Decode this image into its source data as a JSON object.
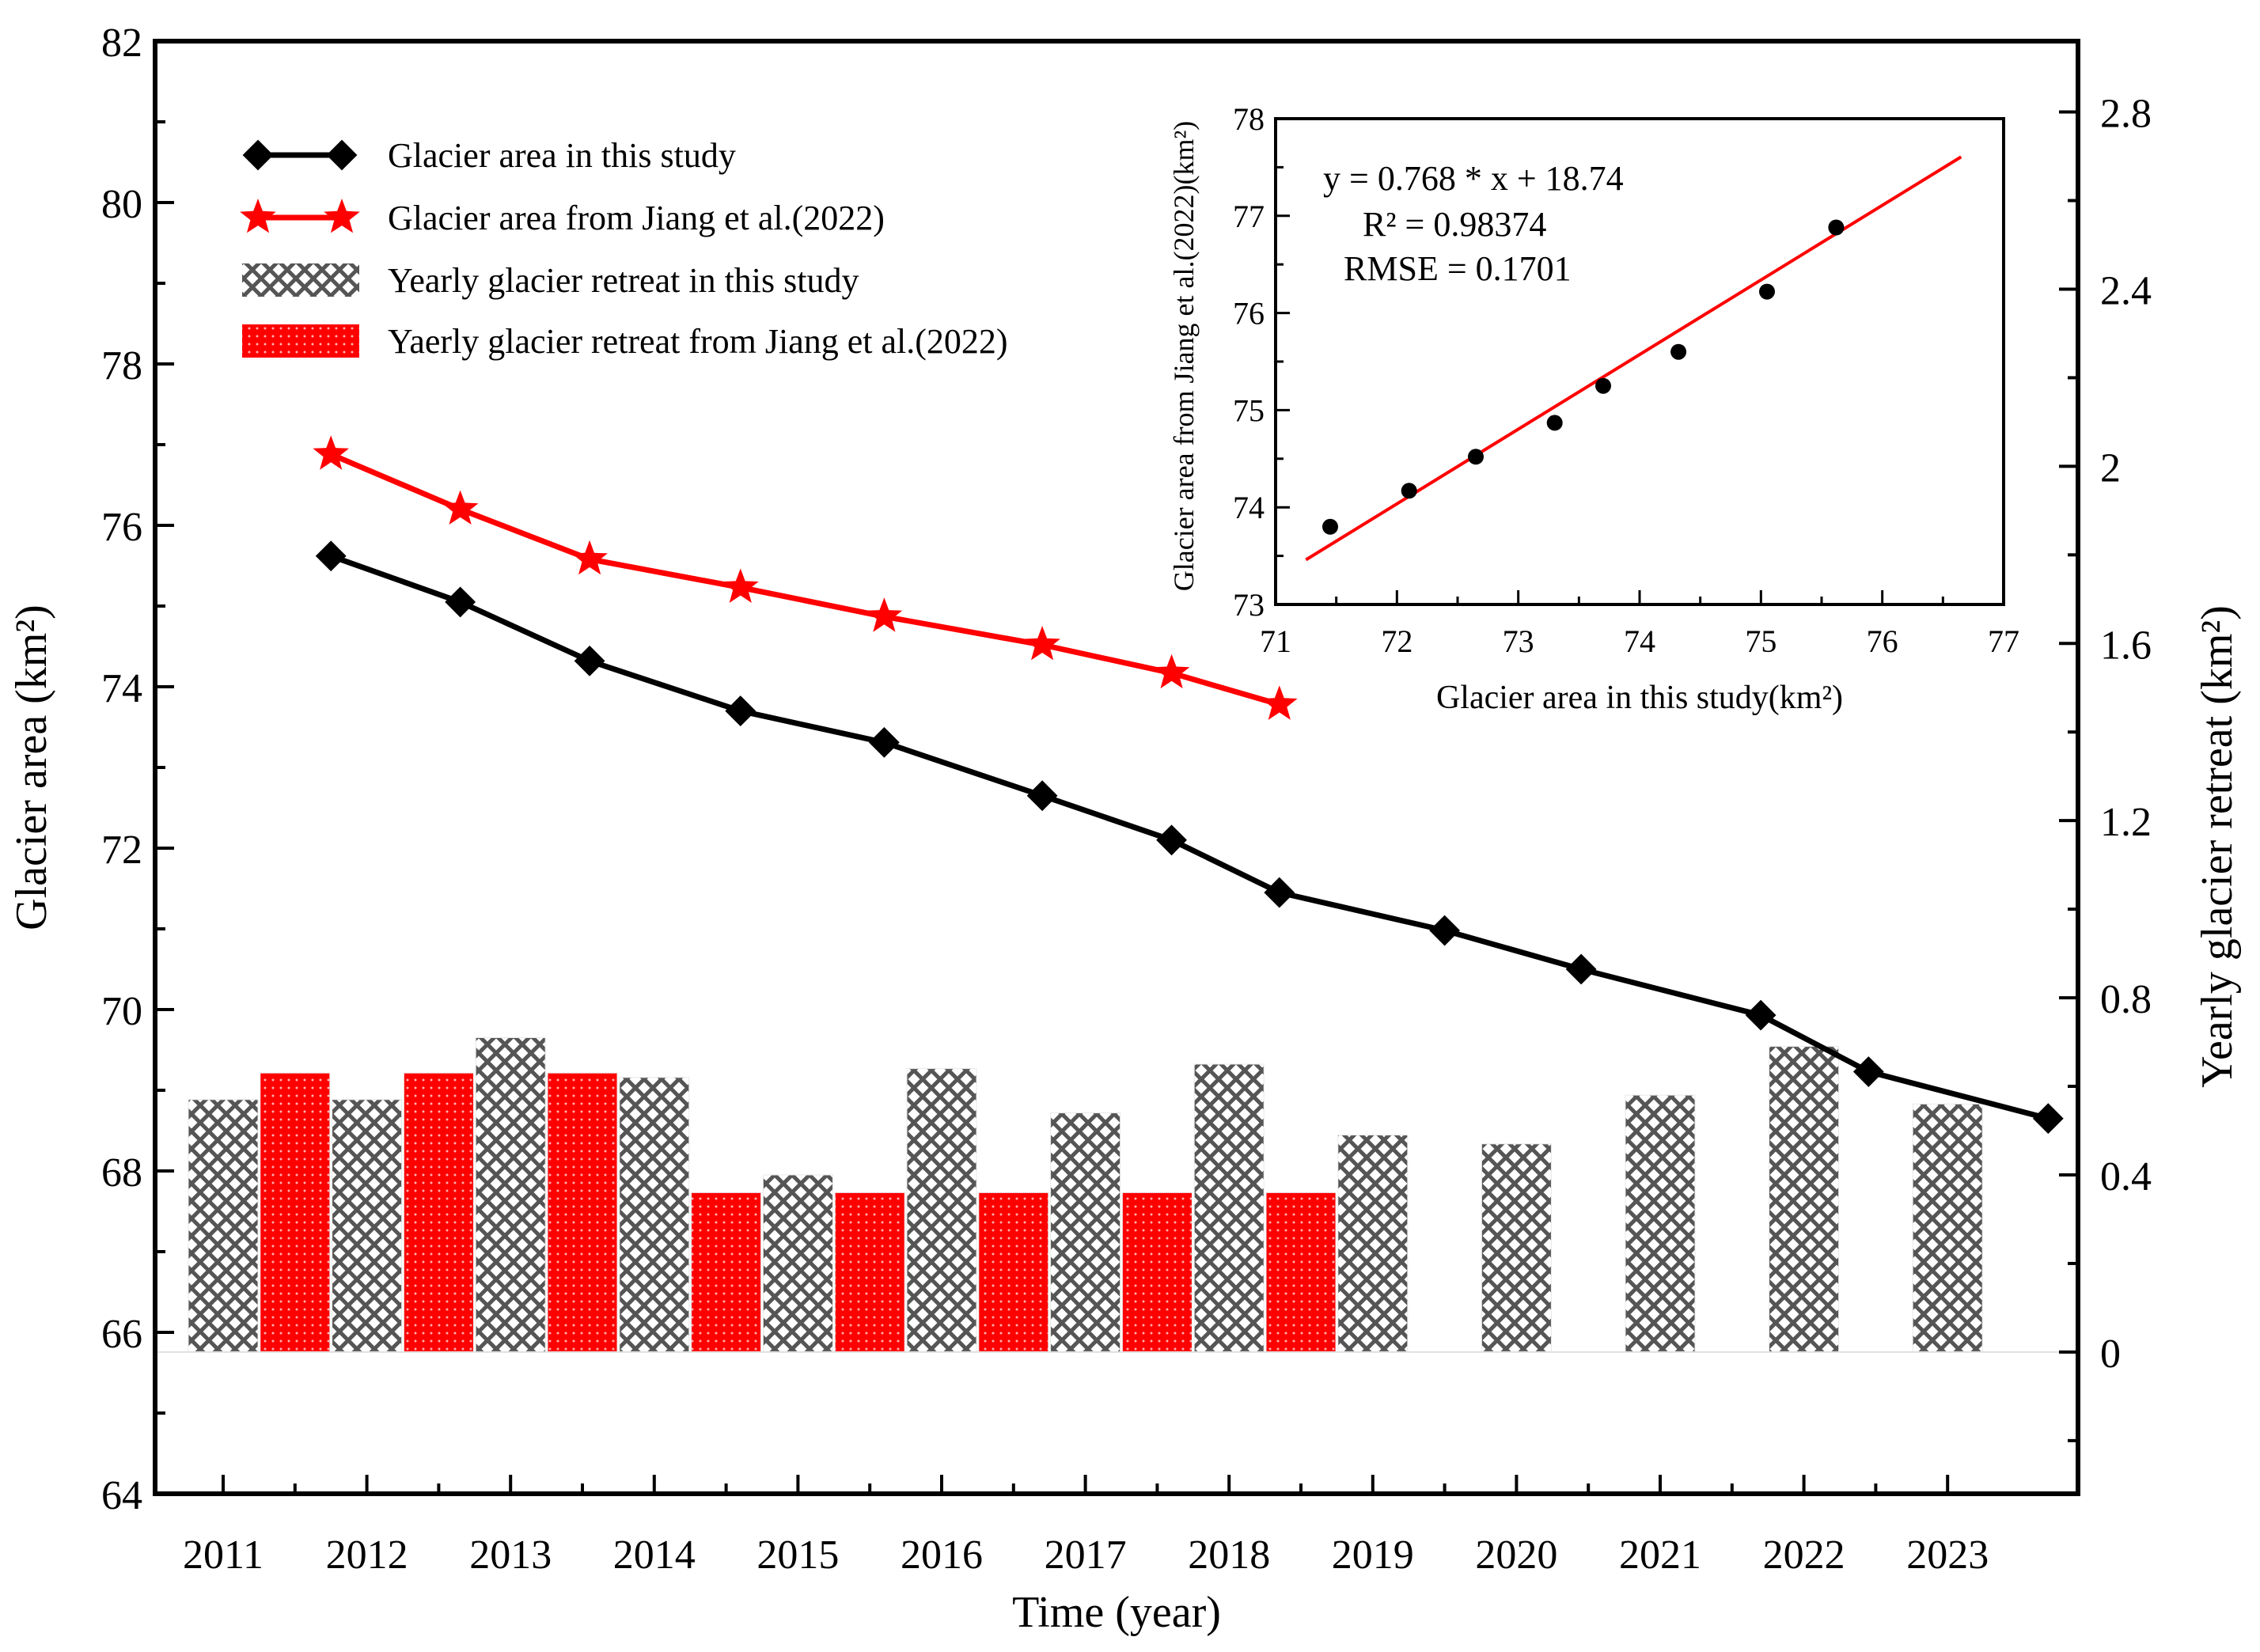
{
  "chart_data": [
    {
      "type": "line+bar",
      "title": "",
      "xlabel": "Time (year)",
      "ylabel_left": "Glacier area (km²)",
      "ylabel_right": "Yearly glacier retreat (km²)",
      "x_ticks": [
        "2011",
        "2012",
        "2013",
        "2014",
        "2015",
        "2016",
        "2017",
        "2018",
        "2019",
        "2020",
        "2021",
        "2022",
        "2023"
      ],
      "ylim_left": [
        64,
        82
      ],
      "yticks_left": [
        64,
        66,
        68,
        70,
        72,
        74,
        76,
        78,
        80,
        82
      ],
      "ylim_right": [
        -0.32,
        2.96
      ],
      "yticks_right": [
        0,
        0.4,
        0.8,
        1.2,
        1.6,
        2.0,
        2.4,
        2.8
      ],
      "ytick_labels_right": [
        "0",
        "0.4",
        "0.8",
        "1.2",
        "1.6",
        "2",
        "2.4",
        "2.8"
      ],
      "series": [
        {
          "name": "Glacier area in this study",
          "kind": "line",
          "marker": "diamond",
          "color": "#000000",
          "axis": "left",
          "x": [
            2011.75,
            2012.65,
            2013.55,
            2014.6,
            2015.6,
            2016.7,
            2017.6,
            2018.35,
            2019.5,
            2020.45,
            2021.7,
            2022.45,
            2023.7
          ],
          "values": [
            75.62,
            75.05,
            74.32,
            73.7,
            73.31,
            72.65,
            72.1,
            71.45,
            70.98,
            70.5,
            69.93,
            69.23,
            68.65
          ]
        },
        {
          "name": "Glacier area from Jiang et al.(2022)",
          "kind": "line",
          "marker": "star",
          "color": "#ff0000",
          "axis": "left",
          "x": [
            2011.75,
            2012.65,
            2013.55,
            2014.6,
            2015.6,
            2016.7,
            2017.6,
            2018.35
          ],
          "values": [
            76.88,
            76.2,
            75.58,
            75.23,
            74.87,
            74.52,
            74.17,
            73.78
          ]
        },
        {
          "name": "Yearly glacier retreat in this study",
          "kind": "bar",
          "pattern": "crosshatch",
          "color": "#444444",
          "axis": "right",
          "x": [
            2011.0,
            2012.0,
            2013.0,
            2014.0,
            2015.0,
            2016.0,
            2017.0,
            2018.0,
            2019.0,
            2020.0,
            2021.0,
            2022.0,
            2023.0
          ],
          "values": [
            0.57,
            0.57,
            0.71,
            0.62,
            0.4,
            0.64,
            0.54,
            0.65,
            0.49,
            0.47,
            0.58,
            0.69,
            0.56
          ]
        },
        {
          "name": "Yaerly glacier retreat from Jiang et al.(2022)",
          "kind": "bar",
          "pattern": "dotted",
          "color": "#ff0000",
          "axis": "right",
          "x": [
            2011.5,
            2012.5,
            2013.5,
            2014.5,
            2015.5,
            2016.5,
            2017.5,
            2018.5
          ],
          "values": [
            0.63,
            0.63,
            0.63,
            0.36,
            0.36,
            0.36,
            0.36,
            0.36
          ]
        }
      ],
      "legend_position": "top-left"
    },
    {
      "type": "scatter",
      "title": "",
      "xlabel": "Glacier area in this study(km²)",
      "ylabel": "Glacier area from Jiang et al.(2022)(km²)",
      "xlim": [
        71,
        77
      ],
      "ylim": [
        73,
        78
      ],
      "x_ticks": [
        71,
        72,
        73,
        74,
        75,
        76,
        77
      ],
      "y_ticks": [
        73,
        74,
        75,
        76,
        77,
        78
      ],
      "points": {
        "x": [
          71.45,
          72.1,
          72.65,
          73.3,
          73.7,
          74.32,
          75.05,
          75.62
        ],
        "y": [
          73.8,
          74.17,
          74.52,
          74.87,
          75.25,
          75.6,
          76.22,
          76.88
        ]
      },
      "fit_line": {
        "slope": 0.768,
        "intercept": 18.74,
        "x_range": [
          71.25,
          76.65
        ],
        "color": "#ff0000"
      },
      "annotations": [
        "y = 0.768 * x + 18.74",
        "R² = 0.98374",
        "RMSE = 0.1701"
      ]
    }
  ]
}
